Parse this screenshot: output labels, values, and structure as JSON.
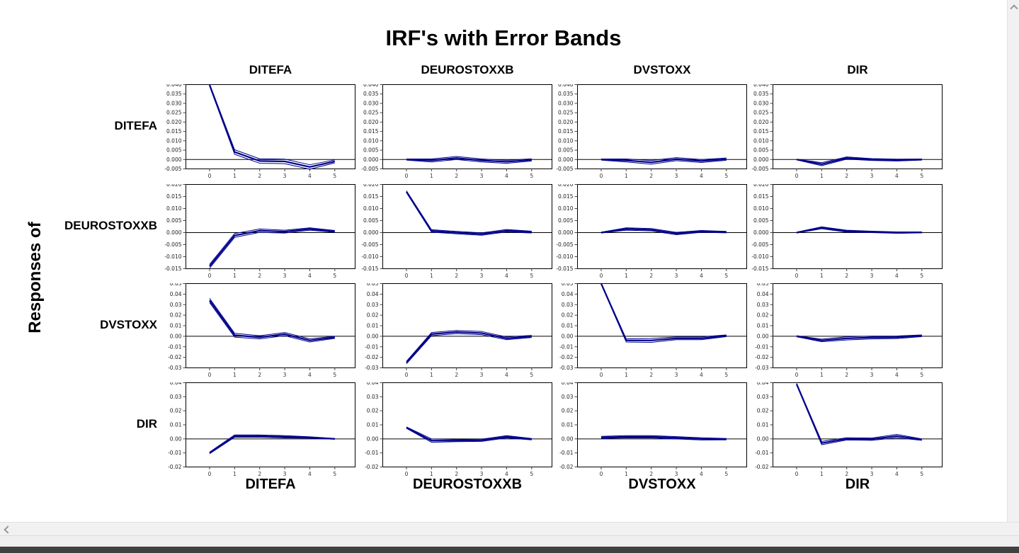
{
  "title": "IRF's with Error Bands",
  "left_axis_label": "Responses of",
  "column_headers": [
    "DITEFA",
    "DEUROSTOXXB",
    "DVSTOXX",
    "DIR"
  ],
  "row_labels": [
    "DITEFA",
    "DEUROSTOXXB",
    "DVSTOXX",
    "DIR"
  ],
  "bottom_labels": [
    "DITEFA",
    "DEUROSTOXXB",
    "DVSTOXX",
    "DIR"
  ],
  "colors": {
    "line_navy": "#00008B",
    "axis_black": "#000000",
    "tick_text": "#222222",
    "scrollbar_track": "#f1f1f1",
    "scrollbar_arrow": "#979797",
    "bottom_bar": "#414141",
    "background": "#ffffff"
  },
  "chart_data": {
    "type": "line",
    "title": "IRF's with Error Bands",
    "layout": "4x4 grid; columns = shock variable, rows = responding variable",
    "legend": "none",
    "grid": "off",
    "error_bands": true,
    "line_color": "#00008B",
    "x": [
      0,
      1,
      2,
      3,
      4,
      5
    ],
    "rows": [
      {
        "response": "DITEFA",
        "ylim": [
          -0.005,
          0.04
        ],
        "ytick_step": 0.005,
        "ytick_decimals": 3,
        "cells": [
          {
            "shock": "DITEFA",
            "center": [
              0.0398,
              0.004,
              -0.0008,
              -0.001,
              -0.004,
              -0.001
            ],
            "band_halfwidth": [
              0.0006,
              0.0012,
              0.0012,
              0.0012,
              0.0012,
              0.0008
            ]
          },
          {
            "shock": "DEUROSTOXXB",
            "center": [
              0.0,
              -0.0005,
              0.0008,
              -0.0005,
              -0.0012,
              -0.0002
            ],
            "band_halfwidth": [
              0.0003,
              0.0008,
              0.0008,
              0.0008,
              0.0008,
              0.0006
            ]
          },
          {
            "shock": "DVSTOXX",
            "center": [
              0.0,
              -0.0005,
              -0.0015,
              0.0002,
              -0.0008,
              0.0002
            ],
            "band_halfwidth": [
              0.0003,
              0.0008,
              0.001,
              0.0008,
              0.0008,
              0.0006
            ]
          },
          {
            "shock": "DIR",
            "center": [
              0.0,
              -0.0025,
              0.0008,
              0.0,
              -0.0003,
              0.0
            ],
            "band_halfwidth": [
              0.0002,
              0.0008,
              0.0006,
              0.0005,
              0.0005,
              0.0003
            ]
          }
        ]
      },
      {
        "response": "DEUROSTOXXB",
        "ylim": [
          -0.015,
          0.02
        ],
        "ytick_step": 0.005,
        "ytick_decimals": 3,
        "cells": [
          {
            "shock": "DITEFA",
            "center": [
              -0.014,
              -0.0012,
              0.0008,
              0.0004,
              0.0015,
              0.0005
            ],
            "band_halfwidth": [
              0.0008,
              0.0008,
              0.0007,
              0.0006,
              0.0005,
              0.0004
            ]
          },
          {
            "shock": "DEUROSTOXXB",
            "center": [
              0.017,
              0.0007,
              0.0,
              -0.0006,
              0.0008,
              0.0002
            ],
            "band_halfwidth": [
              0.0004,
              0.0005,
              0.0005,
              0.0005,
              0.0005,
              0.0004
            ]
          },
          {
            "shock": "DVSTOXX",
            "center": [
              0.0,
              0.0015,
              0.0012,
              -0.0004,
              0.0005,
              0.0002
            ],
            "band_halfwidth": [
              0.0002,
              0.0005,
              0.0005,
              0.0005,
              0.0004,
              0.0003
            ]
          },
          {
            "shock": "DIR",
            "center": [
              0.0,
              0.002,
              0.0006,
              0.0003,
              0.0,
              0.0001
            ],
            "band_halfwidth": [
              0.0002,
              0.0004,
              0.0004,
              0.0003,
              0.0003,
              0.0002
            ]
          }
        ]
      },
      {
        "response": "DVSTOXX",
        "ylim": [
          -0.03,
          0.05
        ],
        "ytick_step": 0.01,
        "ytick_decimals": 2,
        "cells": [
          {
            "shock": "DITEFA",
            "center": [
              0.034,
              0.001,
              -0.001,
              0.002,
              -0.004,
              -0.001
            ],
            "band_halfwidth": [
              0.002,
              0.0018,
              0.0015,
              0.0015,
              0.0015,
              0.001
            ]
          },
          {
            "shock": "DEUROSTOXXB",
            "center": [
              -0.025,
              0.002,
              0.004,
              0.003,
              -0.002,
              -0.0002
            ],
            "band_halfwidth": [
              0.0012,
              0.0015,
              0.0015,
              0.0015,
              0.0013,
              0.001
            ]
          },
          {
            "shock": "DVSTOXX",
            "center": [
              0.05,
              -0.004,
              -0.004,
              -0.002,
              -0.002,
              0.0005
            ],
            "band_halfwidth": [
              0.0005,
              0.0015,
              0.0018,
              0.0013,
              0.0013,
              0.0008
            ]
          },
          {
            "shock": "DIR",
            "center": [
              0.0,
              -0.004,
              -0.002,
              -0.0012,
              -0.001,
              0.0005
            ],
            "band_halfwidth": [
              0.0005,
              0.0012,
              0.0015,
              0.0013,
              0.0012,
              0.0008
            ]
          }
        ]
      },
      {
        "response": "DIR",
        "ylim": [
          -0.02,
          0.04
        ],
        "ytick_step": 0.01,
        "ytick_decimals": 2,
        "cells": [
          {
            "shock": "DITEFA",
            "center": [
              -0.01,
              0.002,
              0.002,
              0.0015,
              0.001,
              0.0
            ],
            "band_halfwidth": [
              0.0006,
              0.0008,
              0.0008,
              0.0008,
              0.0005,
              0.0003
            ]
          },
          {
            "shock": "DEUROSTOXXB",
            "center": [
              0.008,
              -0.0012,
              -0.0012,
              -0.001,
              0.0015,
              -0.0002
            ],
            "band_halfwidth": [
              0.0005,
              0.0012,
              0.0008,
              0.0008,
              0.0008,
              0.0005
            ]
          },
          {
            "shock": "DVSTOXX",
            "center": [
              0.001,
              0.0015,
              0.0015,
              0.0008,
              0.0,
              -0.0002
            ],
            "band_halfwidth": [
              0.0008,
              0.0008,
              0.0008,
              0.0008,
              0.0008,
              0.0005
            ]
          },
          {
            "shock": "DIR",
            "center": [
              0.039,
              -0.003,
              0.0,
              -0.0002,
              0.002,
              -0.0005
            ],
            "band_halfwidth": [
              0.0005,
              0.0012,
              0.0008,
              0.0008,
              0.0012,
              0.0005
            ]
          }
        ]
      }
    ]
  }
}
